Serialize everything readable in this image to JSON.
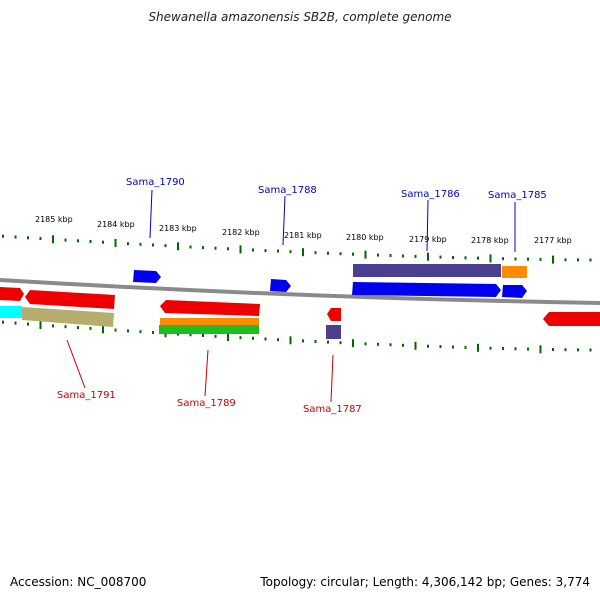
{
  "title": "Shewanella amazonensis SB2B, complete genome",
  "footer": {
    "accession": "Accession: NC_008700",
    "topology": "Topology: circular; Length: 4,306,142 bp; Genes: 3,774"
  },
  "kbp_labels": [
    "2185 kbp",
    "2184 kbp",
    "2183 kbp",
    "2182 kbp",
    "2181 kbp",
    "2180 kbp",
    "2179 kbp",
    "2178 kbp",
    "2177 kbp"
  ],
  "top_genes": [
    "Sama_1790",
    "Sama_1788",
    "Sama_1786",
    "Sama_1785"
  ],
  "bottom_genes": [
    "Sama_1791",
    "Sama_1789",
    "Sama_1787"
  ],
  "colors": {
    "forward": "#0000ee",
    "reverse": "#ee0000",
    "cds_purple": "#4b3f8f",
    "cds_orange": "#ff8c00",
    "cds_khaki": "#b5ad6e",
    "cds_cyan": "#00ffff",
    "cds_green": "#22bb22",
    "tick": "#006600",
    "backbone": "#888888"
  }
}
